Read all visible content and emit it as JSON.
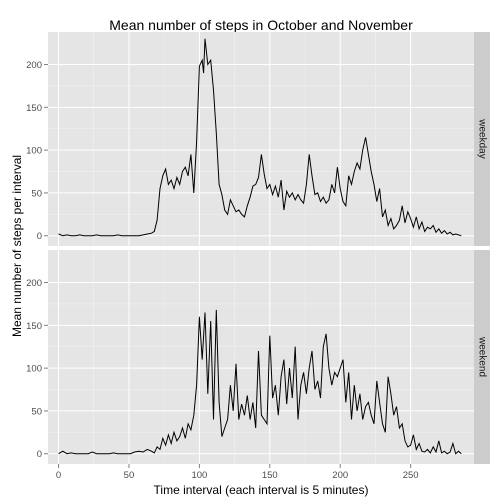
{
  "chart_data": {
    "type": "line",
    "title": "Mean number of steps in October and November",
    "xlabel": "Time interval (each interval is 5 minutes)",
    "ylabel": "Mean number of steps per interval",
    "xlim": [
      -7.5,
      295
    ],
    "ylim": [
      -12,
      238
    ],
    "x_ticks": [
      0,
      50,
      100,
      150,
      200,
      250
    ],
    "y_ticks": [
      0,
      50,
      100,
      150,
      200
    ],
    "grid": true,
    "facets": [
      {
        "name": "weekday",
        "x": [
          0,
          3,
          6,
          9,
          12,
          15,
          18,
          21,
          24,
          27,
          30,
          33,
          36,
          39,
          42,
          45,
          48,
          51,
          54,
          57,
          60,
          63,
          66,
          68,
          70,
          72,
          74,
          76,
          78,
          80,
          82,
          84,
          86,
          88,
          90,
          92,
          94,
          96,
          98,
          100,
          102,
          103,
          104,
          105,
          106,
          108,
          110,
          112,
          114,
          116,
          118,
          120,
          122,
          124,
          126,
          128,
          130,
          132,
          134,
          136,
          138,
          140,
          142,
          144,
          146,
          148,
          150,
          152,
          154,
          156,
          158,
          160,
          162,
          164,
          166,
          168,
          170,
          172,
          174,
          176,
          178,
          180,
          182,
          184,
          186,
          188,
          190,
          192,
          194,
          196,
          198,
          200,
          202,
          204,
          206,
          208,
          210,
          212,
          214,
          216,
          218,
          220,
          222,
          224,
          226,
          228,
          230,
          232,
          234,
          236,
          238,
          240,
          242,
          244,
          246,
          248,
          250,
          252,
          254,
          256,
          258,
          260,
          262,
          264,
          266,
          268,
          270,
          272,
          274,
          276,
          278,
          280,
          282,
          284,
          286
        ],
        "y": [
          2,
          0,
          1,
          0,
          0,
          1,
          0,
          0,
          0,
          1,
          0,
          0,
          0,
          0,
          1,
          0,
          0,
          0,
          0,
          0,
          1,
          2,
          3,
          5,
          18,
          55,
          70,
          78,
          60,
          65,
          55,
          68,
          60,
          75,
          80,
          70,
          95,
          50,
          110,
          198,
          205,
          190,
          230,
          215,
          200,
          205,
          170,
          120,
          60,
          48,
          30,
          25,
          42,
          35,
          28,
          30,
          25,
          22,
          35,
          45,
          58,
          60,
          68,
          95,
          72,
          55,
          60,
          48,
          58,
          45,
          65,
          30,
          52,
          45,
          50,
          42,
          48,
          42,
          38,
          60,
          95,
          70,
          48,
          50,
          40,
          45,
          38,
          42,
          60,
          50,
          80,
          55,
          40,
          35,
          70,
          60,
          75,
          85,
          78,
          100,
          115,
          95,
          75,
          60,
          40,
          55,
          22,
          30,
          12,
          20,
          8,
          12,
          18,
          35,
          15,
          28,
          20,
          10,
          22,
          8,
          16,
          5,
          10,
          8,
          12,
          4,
          8,
          3,
          6,
          2,
          4,
          1,
          2,
          1,
          0
        ]
      },
      {
        "name": "weekend",
        "x": [
          0,
          3,
          6,
          9,
          12,
          15,
          18,
          21,
          24,
          27,
          30,
          33,
          36,
          39,
          42,
          45,
          48,
          51,
          54,
          57,
          60,
          63,
          66,
          68,
          70,
          72,
          74,
          76,
          78,
          80,
          82,
          84,
          86,
          88,
          90,
          92,
          94,
          96,
          98,
          100,
          102,
          104,
          106,
          108,
          110,
          112,
          114,
          116,
          118,
          120,
          122,
          124,
          126,
          128,
          130,
          132,
          134,
          136,
          138,
          140,
          142,
          144,
          146,
          148,
          150,
          152,
          154,
          156,
          158,
          160,
          162,
          164,
          166,
          168,
          170,
          172,
          174,
          176,
          178,
          180,
          182,
          184,
          186,
          188,
          190,
          192,
          194,
          196,
          198,
          200,
          202,
          204,
          206,
          208,
          210,
          212,
          214,
          216,
          218,
          220,
          222,
          224,
          226,
          228,
          230,
          232,
          234,
          236,
          238,
          240,
          242,
          244,
          246,
          248,
          250,
          252,
          254,
          256,
          258,
          260,
          262,
          264,
          266,
          268,
          270,
          272,
          274,
          276,
          278,
          280,
          282,
          284,
          286
        ],
        "y": [
          0,
          3,
          0,
          1,
          0,
          0,
          0,
          0,
          2,
          0,
          0,
          0,
          0,
          1,
          0,
          0,
          0,
          0,
          2,
          3,
          2,
          5,
          3,
          1,
          8,
          5,
          18,
          10,
          22,
          12,
          25,
          15,
          20,
          30,
          18,
          35,
          28,
          45,
          80,
          160,
          110,
          165,
          70,
          155,
          40,
          168,
          60,
          20,
          30,
          40,
          80,
          50,
          105,
          40,
          58,
          45,
          68,
          40,
          60,
          30,
          120,
          45,
          40,
          35,
          138,
          65,
          80,
          45,
          90,
          110,
          58,
          100,
          65,
          125,
          40,
          80,
          95,
          70,
          100,
          120,
          75,
          85,
          65,
          125,
          140,
          100,
          80,
          95,
          90,
          100,
          110,
          60,
          95,
          40,
          80,
          50,
          70,
          40,
          55,
          60,
          45,
          35,
          85,
          60,
          35,
          25,
          90,
          70,
          45,
          55,
          30,
          35,
          15,
          8,
          10,
          22,
          5,
          12,
          3,
          2,
          5,
          1,
          8,
          2,
          15,
          1,
          3,
          0,
          2,
          12,
          0,
          3,
          0
        ]
      }
    ]
  }
}
